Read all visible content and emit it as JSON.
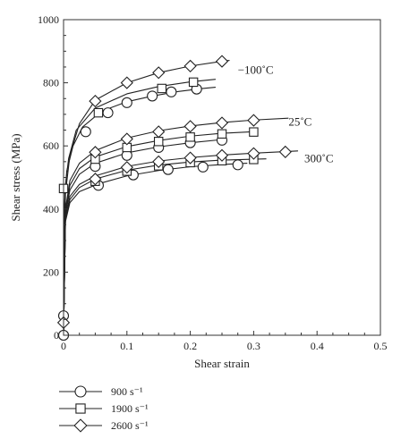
{
  "chart_data": {
    "type": "line",
    "title": "",
    "xlabel": "Shear strain",
    "ylabel": "Shear stress (MPa)",
    "xlim": [
      0,
      0.5
    ],
    "ylim": [
      0,
      1000
    ],
    "xticks": [
      0,
      0.1,
      0.2,
      0.3,
      0.4,
      0.5
    ],
    "xtick_labels": [
      "0",
      "0.1",
      "0.2",
      "0.3",
      "0.4",
      "0.5"
    ],
    "yticks": [
      0,
      200,
      400,
      600,
      800,
      1000
    ],
    "ytick_labels": [
      "0",
      "200",
      "400",
      "600",
      "800",
      "1000"
    ],
    "grid": false,
    "legend_position": "bottom-left",
    "legend": [
      {
        "label": "900 s⁻¹",
        "marker": "circle"
      },
      {
        "label": "1900 s⁻¹",
        "marker": "square"
      },
      {
        "label": "2600 s⁻¹",
        "marker": "diamond"
      }
    ],
    "group_labels": [
      {
        "text": "−100˚C",
        "x": 0.275,
        "y": 828
      },
      {
        "text": "25˚C",
        "x": 0.355,
        "y": 665
      },
      {
        "text": "300˚C",
        "x": 0.38,
        "y": 548
      }
    ],
    "series": [
      {
        "name": "900 s⁻¹",
        "group": "−100˚C",
        "marker": "circle",
        "x": [
          0,
          0.001,
          0.005,
          0.015,
          0.03,
          0.06,
          0.1,
          0.14,
          0.18,
          0.22,
          0.24
        ],
        "y": [
          0,
          400,
          520,
          600,
          660,
          710,
          740,
          758,
          772,
          782,
          786
        ],
        "markers_x": [
          0.0,
          0.0,
          0.035,
          0.07,
          0.1,
          0.14,
          0.17,
          0.21
        ],
        "markers_y": [
          0,
          62,
          645,
          705,
          737,
          758,
          771,
          780
        ]
      },
      {
        "name": "1900 s⁻¹",
        "group": "−100˚C",
        "marker": "square",
        "x": [
          0,
          0.002,
          0.008,
          0.02,
          0.05,
          0.1,
          0.15,
          0.2,
          0.24
        ],
        "y": [
          0,
          460,
          560,
          650,
          720,
          765,
          788,
          803,
          811
        ],
        "markers_x": [
          0.0,
          0.055,
          0.155,
          0.205
        ],
        "markers_y": [
          465,
          705,
          782,
          802
        ]
      },
      {
        "name": "2600 s⁻¹",
        "group": "−100˚C",
        "marker": "diamond",
        "x": [
          0,
          0.003,
          0.01,
          0.025,
          0.05,
          0.1,
          0.15,
          0.2,
          0.25,
          0.262
        ],
        "y": [
          0,
          450,
          570,
          670,
          745,
          800,
          832,
          853,
          868,
          871
        ],
        "markers_x": [
          0.0,
          0.05,
          0.1,
          0.15,
          0.2,
          0.25
        ],
        "markers_y": [
          40,
          742,
          800,
          832,
          853,
          868
        ]
      },
      {
        "name": "900 s⁻¹",
        "group": "25˚C",
        "marker": "circle",
        "x": [
          0,
          0.003,
          0.01,
          0.025,
          0.05,
          0.1,
          0.15,
          0.2,
          0.25
        ],
        "y": [
          0,
          380,
          460,
          510,
          545,
          578,
          597,
          610,
          620
        ],
        "markers_x": [
          0.0,
          0.05,
          0.1,
          0.15,
          0.2,
          0.25
        ],
        "markers_y": [
          0,
          535,
          570,
          595,
          610,
          618
        ]
      },
      {
        "name": "1900 s⁻¹",
        "group": "25˚C",
        "marker": "square",
        "x": [
          0,
          0.003,
          0.01,
          0.025,
          0.05,
          0.1,
          0.15,
          0.2,
          0.25,
          0.3
        ],
        "y": [
          0,
          390,
          475,
          528,
          565,
          598,
          617,
          631,
          640,
          645
        ],
        "markers_x": [
          0.05,
          0.1,
          0.15,
          0.2,
          0.25,
          0.3
        ],
        "markers_y": [
          558,
          595,
          614,
          628,
          638,
          644
        ]
      },
      {
        "name": "2600 s⁻¹",
        "group": "25˚C",
        "marker": "diamond",
        "x": [
          0,
          0.003,
          0.01,
          0.025,
          0.05,
          0.1,
          0.15,
          0.2,
          0.25,
          0.3,
          0.355
        ],
        "y": [
          0,
          400,
          490,
          545,
          585,
          625,
          648,
          663,
          674,
          682,
          688
        ],
        "markers_x": [
          0.05,
          0.1,
          0.15,
          0.2,
          0.25,
          0.3
        ],
        "markers_y": [
          580,
          622,
          645,
          662,
          673,
          681
        ]
      },
      {
        "name": "900 s⁻¹",
        "group": "300˚C",
        "marker": "circle",
        "x": [
          0,
          0.003,
          0.01,
          0.025,
          0.055,
          0.1,
          0.15,
          0.2,
          0.25,
          0.29
        ],
        "y": [
          0,
          360,
          420,
          455,
          480,
          505,
          522,
          534,
          541,
          545
        ],
        "markers_x": [
          0.055,
          0.11,
          0.165,
          0.22,
          0.275
        ],
        "markers_y": [
          475,
          508,
          525,
          533,
          540
        ]
      },
      {
        "name": "1900 s⁻¹",
        "group": "300˚C",
        "marker": "square",
        "x": [
          0,
          0.003,
          0.01,
          0.025,
          0.05,
          0.1,
          0.15,
          0.2,
          0.25,
          0.3,
          0.32
        ],
        "y": [
          0,
          365,
          430,
          468,
          495,
          523,
          539,
          549,
          555,
          558,
          559
        ],
        "markers_x": [
          0.05,
          0.1,
          0.15,
          0.2,
          0.25,
          0.3
        ],
        "markers_y": [
          488,
          520,
          537,
          547,
          553,
          557
        ]
      },
      {
        "name": "2600 s⁻¹",
        "group": "300˚C",
        "marker": "diamond",
        "x": [
          0,
          0.003,
          0.01,
          0.025,
          0.05,
          0.1,
          0.15,
          0.2,
          0.25,
          0.3,
          0.35,
          0.37
        ],
        "y": [
          0,
          370,
          440,
          478,
          505,
          535,
          552,
          563,
          571,
          577,
          582,
          584
        ],
        "markers_x": [
          0.05,
          0.1,
          0.15,
          0.2,
          0.25,
          0.3,
          0.35
        ],
        "markers_y": [
          495,
          532,
          550,
          562,
          570,
          576,
          581
        ]
      }
    ]
  }
}
